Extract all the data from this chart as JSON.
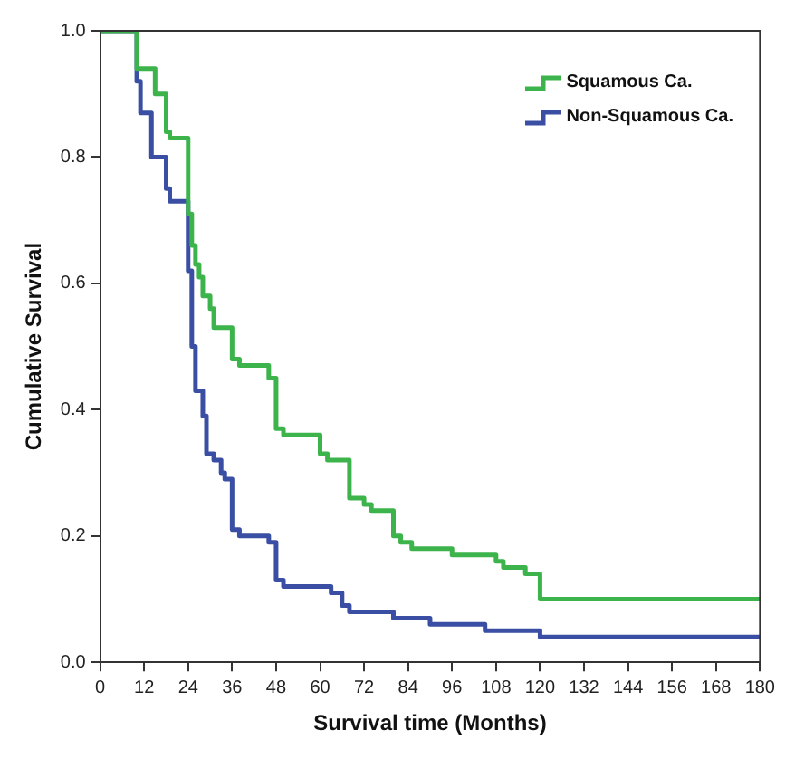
{
  "chart_data": {
    "type": "step",
    "xlabel": "Survival time (Months)",
    "ylabel": "Cumulative Survival",
    "xlim": [
      0,
      180
    ],
    "xticks": [
      0,
      12,
      24,
      36,
      48,
      60,
      72,
      84,
      96,
      108,
      120,
      132,
      144,
      156,
      168,
      180
    ],
    "ylim": [
      0,
      1
    ],
    "yticks": [
      {
        "value": 0,
        "label": "0.0"
      },
      {
        "value": 0.2,
        "label": "0.2"
      },
      {
        "value": 0.4,
        "label": "0.4"
      },
      {
        "value": 0.6,
        "label": "0.6"
      },
      {
        "value": 0.8,
        "label": "0.8"
      },
      {
        "value": 1,
        "label": "1.0"
      }
    ],
    "grid": false,
    "legend": "top right",
    "marker": "none",
    "line_style": "solid",
    "series": [
      {
        "name": "Squamous Ca.",
        "color": "#3cb44b",
        "x": [
          0,
          10,
          15,
          18,
          19,
          24,
          25,
          26,
          27,
          28,
          30,
          31,
          36,
          38,
          46,
          48,
          50,
          60,
          62,
          68,
          72,
          74,
          80,
          82,
          85,
          96,
          108,
          110,
          116,
          120,
          180
        ],
        "values": [
          1.0,
          0.94,
          0.9,
          0.84,
          0.83,
          0.71,
          0.66,
          0.63,
          0.61,
          0.58,
          0.56,
          0.53,
          0.48,
          0.47,
          0.45,
          0.37,
          0.36,
          0.33,
          0.32,
          0.26,
          0.25,
          0.24,
          0.2,
          0.19,
          0.18,
          0.17,
          0.16,
          0.15,
          0.14,
          0.1,
          0.1
        ]
      },
      {
        "name": "Non-Squamous Ca.",
        "color": "#3a4fa3",
        "x": [
          0,
          10,
          11,
          14,
          18,
          19,
          24,
          25,
          26,
          28,
          29,
          31,
          33,
          34,
          36,
          38,
          46,
          48,
          50,
          63,
          66,
          68,
          80,
          84,
          90,
          100,
          105,
          109,
          120,
          180
        ],
        "values": [
          1.0,
          0.92,
          0.87,
          0.8,
          0.75,
          0.73,
          0.62,
          0.5,
          0.43,
          0.39,
          0.33,
          0.32,
          0.3,
          0.29,
          0.21,
          0.2,
          0.19,
          0.13,
          0.12,
          0.11,
          0.09,
          0.08,
          0.07,
          0.07,
          0.06,
          0.06,
          0.05,
          0.05,
          0.04,
          0.04
        ]
      }
    ]
  }
}
